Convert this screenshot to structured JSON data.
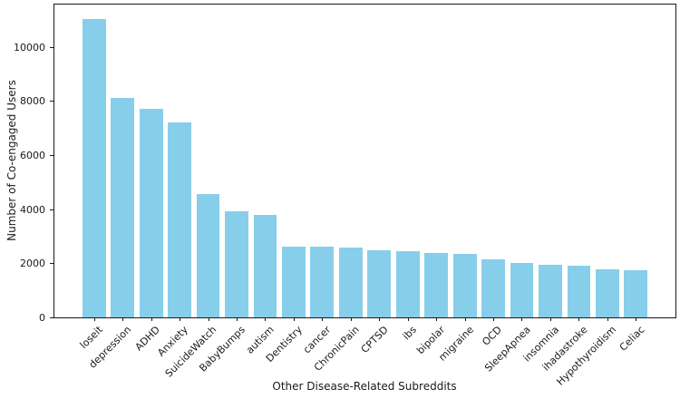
{
  "chart_data": {
    "type": "bar",
    "title": "",
    "xlabel": "Other Disease-Related Subreddits",
    "ylabel": "Number of Co-engaged Users",
    "categories": [
      "loseit",
      "depression",
      "ADHD",
      "Anxiety",
      "SuicideWatch",
      "BabyBumps",
      "autism",
      "Dentistry",
      "cancer",
      "ChronicPain",
      "CPTSD",
      "ibs",
      "bipolar",
      "migraine",
      "OCD",
      "SleepApnea",
      "insomnia",
      "ihadastroke",
      "Hypothyroidism",
      "Celiac"
    ],
    "values": [
      11050,
      8100,
      7730,
      7210,
      4550,
      3910,
      3790,
      2630,
      2600,
      2570,
      2490,
      2440,
      2390,
      2340,
      2160,
      2000,
      1960,
      1900,
      1780,
      1740
    ],
    "yticks": [
      0,
      2000,
      4000,
      6000,
      8000,
      10000
    ],
    "ylim": [
      0,
      11570
    ],
    "bar_color": "#87CEEB",
    "axis_color": "#1a1a1a",
    "background_color": "#ffffff",
    "grid": false,
    "legend": null,
    "xtick_rotation": 45
  }
}
